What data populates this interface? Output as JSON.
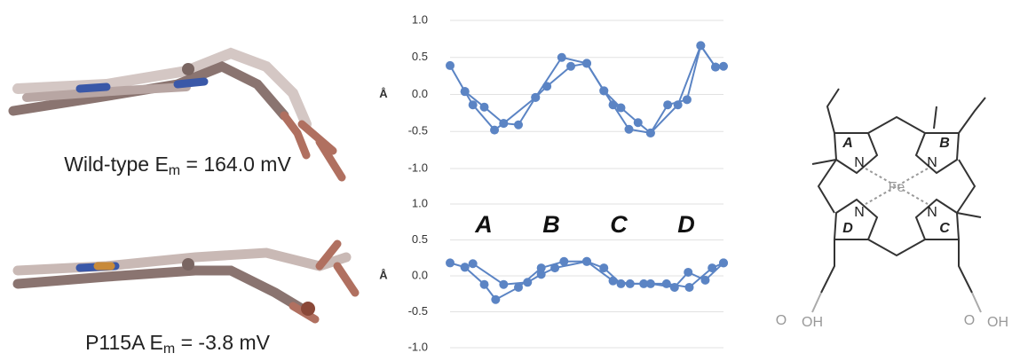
{
  "chart_data": [
    {
      "type": "line",
      "ylabel": "Å",
      "xlim": [
        0,
        24
      ],
      "ylim": [
        -1,
        1
      ],
      "yticks": [
        {
          "value": -1,
          "label": "-1.0"
        },
        -0.5,
        {
          "value": 0,
          "label": "0.0"
        },
        0.5,
        {
          "value": 1,
          "label": "1.0"
        }
      ],
      "grid": true,
      "series": [
        {
          "color": "#5b84c4",
          "x": [
            0,
            1.3,
            2,
            3.9,
            4.7,
            6,
            7.5,
            9.8,
            12,
            13.5,
            14.3,
            15.7,
            17.6,
            20,
            22,
            23.3
          ],
          "values": [
            0.39,
            0.04,
            -0.14,
            -0.48,
            -0.39,
            -0.41,
            -0.04,
            0.5,
            0.42,
            0.05,
            -0.14,
            -0.47,
            -0.52,
            -0.14,
            0.66,
            0.37
          ]
        },
        {
          "color": "#5b84c4",
          "x": [
            1.3,
            3,
            4.7,
            7.5,
            8.5,
            10.6,
            12,
            13.5,
            15,
            16.5,
            17.6,
            19.1,
            20.8,
            22,
            23.3,
            24
          ],
          "values": [
            0.04,
            -0.17,
            -0.39,
            -0.04,
            0.11,
            0.38,
            0.42,
            0.05,
            -0.18,
            -0.38,
            -0.52,
            -0.14,
            -0.07,
            0.66,
            0.37,
            0.38
          ]
        }
      ]
    },
    {
      "type": "line",
      "ylabel": "Å",
      "xlim": [
        0,
        24
      ],
      "ylim": [
        -1,
        1
      ],
      "yticks": [
        {
          "value": -1,
          "label": "-1.0"
        },
        -0.5,
        {
          "value": 0,
          "label": "0.0"
        },
        0.5,
        {
          "value": 1,
          "label": "1.0"
        }
      ],
      "grid": true,
      "annotations": [
        "A",
        "B",
        "C",
        "D"
      ],
      "series": [
        {
          "color": "#5b84c4",
          "x": [
            0,
            1.3,
            3,
            4,
            6,
            8,
            10,
            12,
            13.5,
            15,
            17,
            19,
            21,
            23,
            24
          ],
          "values": [
            0.18,
            0.12,
            -0.12,
            -0.33,
            -0.16,
            0.11,
            0.2,
            0.2,
            0.11,
            -0.11,
            -0.11,
            -0.11,
            -0.16,
            0.11,
            0.18
          ]
        },
        {
          "color": "#5b84c4",
          "x": [
            1.3,
            2,
            4.7,
            6.8,
            8,
            9.2,
            12,
            14.3,
            15.8,
            17.6,
            19.7,
            20.9,
            22.4,
            24
          ],
          "values": [
            0.12,
            0.17,
            -0.12,
            -0.09,
            0.02,
            0.11,
            0.2,
            -0.07,
            -0.11,
            -0.11,
            -0.16,
            0.05,
            -0.06,
            0.18
          ]
        }
      ]
    }
  ],
  "captions": [
    {
      "text": "Wild-type E",
      "sub": "m",
      "rest": " = 164.0 mV"
    },
    {
      "text": "P115A E",
      "sub": "m",
      "rest": " = -3.8 mV"
    }
  ],
  "structure": {
    "rings": [
      "A",
      "B",
      "C",
      "D"
    ],
    "nitrogen": "N",
    "metal": "Fe",
    "oxygen": "O",
    "hydroxyl": "OH"
  }
}
